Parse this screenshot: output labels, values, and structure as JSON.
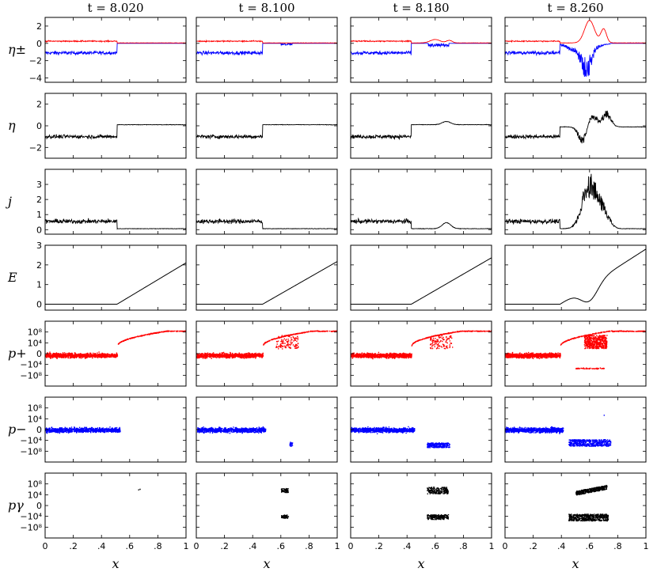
{
  "chart_data": {
    "type": "line",
    "layout": "grid",
    "columns": [
      {
        "title": "t = 8.020",
        "front": 0.51
      },
      {
        "title": "t = 8.100",
        "front": 0.47
      },
      {
        "title": "t = 8.180",
        "front": 0.43
      },
      {
        "title": "t = 8.260",
        "front": 0.39
      }
    ],
    "x_axis": {
      "label": "x",
      "range": [
        0,
        1
      ],
      "ticks": [
        0,
        0.2,
        0.4,
        0.6,
        0.8,
        1
      ],
      "tick_labels": [
        "0",
        ".2",
        ".4",
        ".6",
        ".8",
        "1"
      ]
    },
    "rows": [
      {
        "label": "η±",
        "kind": "eta_pm",
        "ylim": [
          -4.5,
          3
        ],
        "yticks": [
          2,
          0,
          -2,
          -4
        ],
        "ytick_labels": [
          "2",
          "0",
          "−2",
          "−4"
        ],
        "series": [
          {
            "color": "#ff0000"
          },
          {
            "color": "#0000ff"
          }
        ]
      },
      {
        "label": "η",
        "kind": "eta",
        "ylim": [
          -3,
          3
        ],
        "yticks": [
          2,
          0,
          -2
        ],
        "ytick_labels": [
          "2",
          "0",
          "−2"
        ],
        "series": [
          {
            "color": "#000000"
          }
        ]
      },
      {
        "label": "j",
        "kind": "j",
        "ylim": [
          -0.3,
          4
        ],
        "yticks": [
          0,
          1,
          2,
          3
        ],
        "ytick_labels": [
          "0",
          "1",
          "2",
          "3"
        ],
        "series": [
          {
            "color": "#000000"
          }
        ]
      },
      {
        "label": "E",
        "kind": "E",
        "ylim": [
          -0.3,
          3
        ],
        "yticks": [
          0,
          1,
          2,
          3
        ],
        "ytick_labels": [
          "0",
          "1",
          "2",
          "3"
        ],
        "series": [
          {
            "color": "#000000"
          }
        ]
      },
      {
        "label": "p+",
        "kind": "p_plus",
        "ylim": [
          -12,
          12
        ],
        "yticks": [
          8,
          4,
          0,
          -4,
          -8
        ],
        "ytick_labels": [
          "10⁸",
          "10⁴",
          "0",
          "−10⁴",
          "−10⁸"
        ],
        "series": [
          {
            "color": "#ff0000"
          }
        ]
      },
      {
        "label": "p−",
        "kind": "p_minus",
        "ylim": [
          -12,
          12
        ],
        "yticks": [
          8,
          4,
          0,
          -4,
          -8
        ],
        "ytick_labels": [
          "10⁸",
          "10⁴",
          "0",
          "−10⁴",
          "−10⁸"
        ],
        "series": [
          {
            "color": "#0000ff"
          }
        ]
      },
      {
        "label": "pγ",
        "kind": "p_gamma",
        "ylim": [
          -12,
          12
        ],
        "yticks": [
          8,
          4,
          0,
          -4,
          -8
        ],
        "ytick_labels": [
          "10⁸",
          "10⁴",
          "0",
          "−10⁴",
          "−10⁸"
        ],
        "series": [
          {
            "color": "#000000"
          }
        ]
      }
    ]
  }
}
